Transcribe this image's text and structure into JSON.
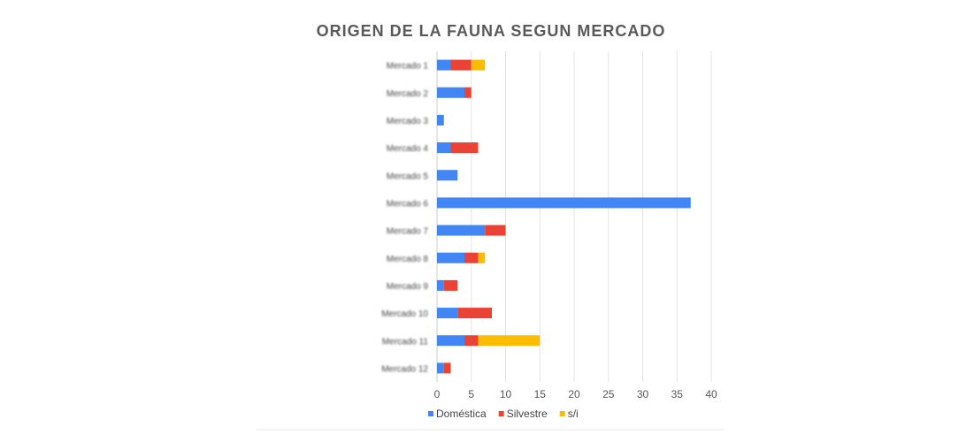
{
  "chart_data": {
    "type": "bar",
    "orientation": "horizontal",
    "stacked": true,
    "title": "ORIGEN DE LA FAUNA SEGUN MERCADO",
    "categories": [
      "Mercado 1",
      "Mercado 2",
      "Mercado 3",
      "Mercado 4",
      "Mercado 5",
      "Mercado 6",
      "Mercado 7",
      "Mercado 8",
      "Mercado 9",
      "Mercado 10",
      "Mercado 11",
      "Mercado 12"
    ],
    "categories_legible": false,
    "series": [
      {
        "name": "Doméstica",
        "color": "#4285f4",
        "values": [
          2,
          4,
          1,
          2,
          3,
          37,
          7,
          4,
          1,
          3,
          4,
          1
        ]
      },
      {
        "name": "Silvestre",
        "color": "#ea4335",
        "values": [
          3,
          1,
          0,
          4,
          0,
          0,
          3,
          2,
          2,
          5,
          2,
          1
        ]
      },
      {
        "name": "s/i",
        "color": "#fbbc04",
        "values": [
          2,
          0,
          0,
          0,
          0,
          0,
          0,
          1,
          0,
          0,
          9,
          0
        ]
      }
    ],
    "xlim": [
      0,
      40
    ],
    "xticks": [
      "0",
      "5",
      "10",
      "15",
      "20",
      "25",
      "30",
      "35",
      "40"
    ],
    "grid": true,
    "legend_position": "bottom"
  }
}
